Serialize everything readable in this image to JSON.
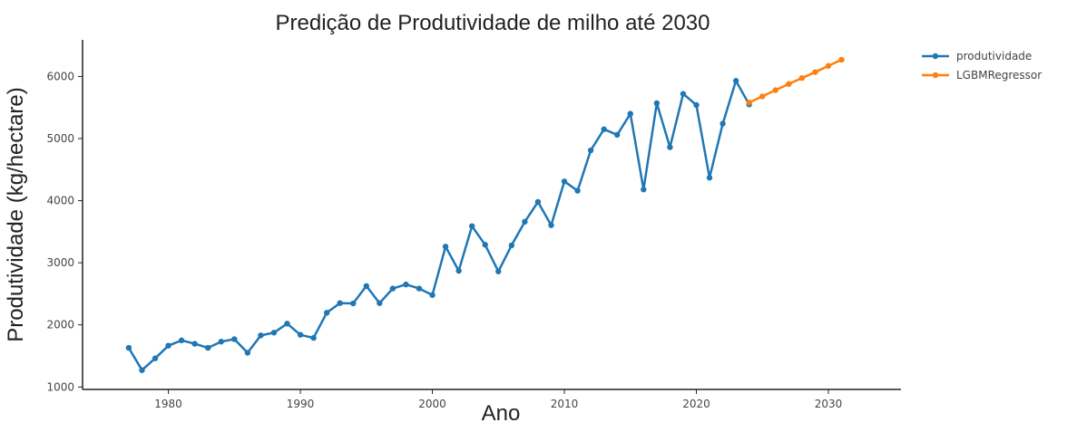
{
  "chart_data": {
    "type": "line",
    "title": "Predição de Produtividade de milho até 2030",
    "xlabel": "Ano",
    "ylabel": "Produtividade (kg/hectare)",
    "xlim": [
      1973.5,
      2035.5
    ],
    "ylim": [
      960,
      6590
    ],
    "x_ticks": [
      1980,
      1990,
      2000,
      2010,
      2020,
      2030
    ],
    "y_ticks": [
      1000,
      2000,
      3000,
      4000,
      5000,
      6000
    ],
    "grid": false,
    "legend_position": "top-right",
    "series": [
      {
        "name": "produtividade",
        "color": "#1f77b4",
        "x": [
          1977,
          1978,
          1979,
          1980,
          1981,
          1982,
          1983,
          1984,
          1985,
          1986,
          1987,
          1988,
          1989,
          1990,
          1991,
          1992,
          1993,
          1994,
          1995,
          1996,
          1997,
          1998,
          1999,
          2000,
          2001,
          2002,
          2003,
          2004,
          2005,
          2006,
          2007,
          2008,
          2009,
          2010,
          2011,
          2012,
          2013,
          2014,
          2015,
          2016,
          2017,
          2018,
          2019,
          2020,
          2021,
          2022,
          2023,
          2024
        ],
        "y": [
          1630,
          1270,
          1460,
          1665,
          1750,
          1695,
          1630,
          1730,
          1770,
          1550,
          1830,
          1875,
          2020,
          1840,
          1790,
          2195,
          2350,
          2345,
          2625,
          2350,
          2585,
          2650,
          2585,
          2480,
          3260,
          2870,
          3590,
          3290,
          2860,
          3280,
          3660,
          3980,
          3605,
          4310,
          4160,
          4810,
          5150,
          5060,
          5400,
          4180,
          5570,
          4860,
          5720,
          5540,
          4370,
          5240,
          5930,
          5550
        ]
      },
      {
        "name": "LGBMRegressor",
        "color": "#ff7f0e",
        "x": [
          2024,
          2025,
          2026,
          2027,
          2028,
          2029,
          2030,
          2031
        ],
        "y": [
          5580,
          5680,
          5780,
          5880,
          5975,
          6070,
          6170,
          6270
        ]
      }
    ]
  }
}
